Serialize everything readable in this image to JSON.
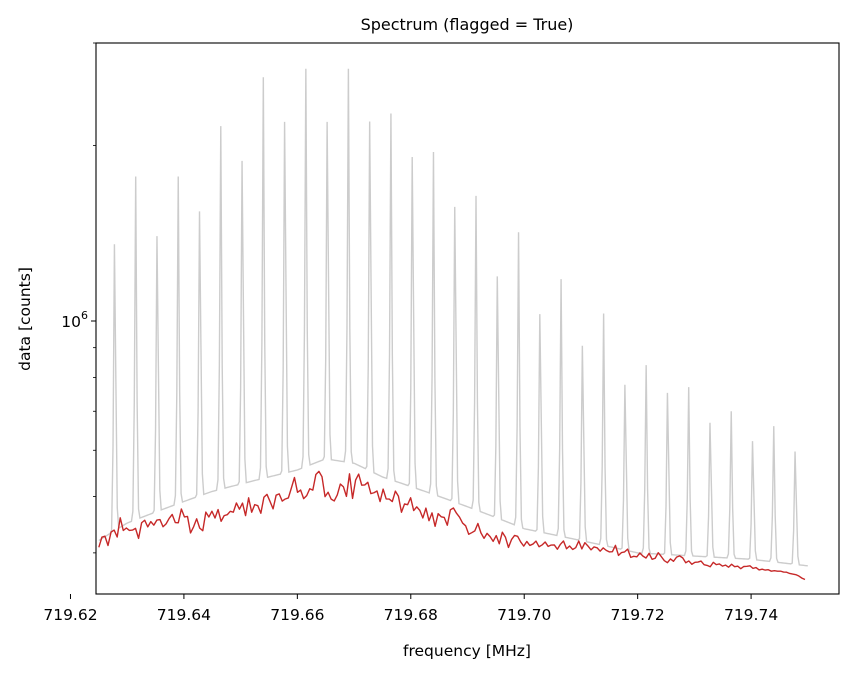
{
  "chart_data": {
    "type": "line",
    "title": "Spectrum (flagged = True)",
    "xlabel": "frequency [MHz]",
    "ylabel": "data [counts]",
    "y_scale": "log",
    "xlim": [
      719.6245,
      719.7555
    ],
    "ylim": [
      340000,
      3000000
    ],
    "x_ticks": [
      "719.62",
      "719.64",
      "719.66",
      "719.68",
      "719.70",
      "719.72",
      "719.74"
    ],
    "x_tick_values": [
      719.62,
      719.64,
      719.66,
      719.68,
      719.7,
      719.72,
      719.74
    ],
    "y_major_tick": {
      "label": "10",
      "exponent": "6",
      "value": 1000000
    },
    "y_minor_ticks": [
      400000,
      500000,
      600000,
      700000,
      800000,
      900000,
      2000000,
      3000000
    ],
    "grid": false,
    "legend": "none",
    "series": [
      {
        "role": "all-channels-background",
        "color": "#cccccc",
        "baseline": [
          [
            719.625,
            420000
          ],
          [
            719.63,
            450000
          ],
          [
            719.635,
            470000
          ],
          [
            719.64,
            490000
          ],
          [
            719.645,
            510000
          ],
          [
            719.65,
            525000
          ],
          [
            719.655,
            540000
          ],
          [
            719.66,
            555000
          ],
          [
            719.665,
            580000
          ],
          [
            719.67,
            570000
          ],
          [
            719.675,
            540000
          ],
          [
            719.68,
            520000
          ],
          [
            719.685,
            500000
          ],
          [
            719.69,
            480000
          ],
          [
            719.695,
            460000
          ],
          [
            719.7,
            440000
          ],
          [
            719.71,
            420000
          ],
          [
            719.72,
            400000
          ],
          [
            719.73,
            395000
          ],
          [
            719.74,
            390000
          ],
          [
            719.75,
            380000
          ]
        ],
        "spikes": [
          [
            719.6278,
            1680000
          ],
          [
            719.6315,
            1770000
          ],
          [
            719.6353,
            1720000
          ],
          [
            719.639,
            1770000
          ],
          [
            719.6428,
            1910000
          ],
          [
            719.6465,
            2160000
          ],
          [
            719.6503,
            2400000
          ],
          [
            719.654,
            2620000
          ],
          [
            719.6578,
            2860000
          ],
          [
            719.6615,
            2710000
          ],
          [
            719.6653,
            2830000
          ],
          [
            719.669,
            2710000
          ],
          [
            719.6728,
            2860000
          ],
          [
            719.6765,
            2270000
          ],
          [
            719.6803,
            2450000
          ],
          [
            719.684,
            1950000
          ],
          [
            719.6878,
            1960000
          ],
          [
            719.6915,
            1640000
          ],
          [
            719.6953,
            1430000
          ],
          [
            719.699,
            1420000
          ],
          [
            719.7028,
            1210000
          ],
          [
            719.7065,
            1180000
          ],
          [
            719.7103,
            1050000
          ],
          [
            719.714,
            1030000
          ],
          [
            719.7178,
            880000
          ],
          [
            719.7215,
            840000
          ],
          [
            719.7253,
            850000
          ],
          [
            719.729,
            770000
          ],
          [
            719.7328,
            740000
          ],
          [
            719.7365,
            700000
          ],
          [
            719.7403,
            680000
          ],
          [
            719.744,
            660000
          ],
          [
            719.7478,
            650000
          ]
        ]
      },
      {
        "role": "flagged-channels",
        "color": "#c62828",
        "x_start": 719.625,
        "x_end": 719.7495,
        "values": [
          408963,
          425622,
          427189,
          411853,
          434209,
          437683,
          425839,
          459440,
          436993,
          441319,
          437006,
          437681,
          440640,
          423591,
          450564,
          455071,
          443282,
          452553,
          446309,
          455453,
          456264,
          443520,
          448574,
          458347,
          465575,
          450924,
          450584,
          475700,
          461066,
          461993,
          432787,
          443398,
          457651,
          441101,
          436616,
          469931,
          460981,
          471562,
          459154,
          474616,
          453138,
          463442,
          465103,
          471398,
          469758,
          487163,
          475359,
          487002,
          463466,
          497180,
          469648,
          484050,
          482051,
          467815,
          498306,
          504138,
          490154,
          476001,
          502434,
          505059,
          490802,
          494941,
          496913,
          517112,
          538815,
          508154,
          512734,
          495562,
          501493,
          515346,
          512536,
          545300,
          551910,
          540512,
          499548,
          508316,
          494707,
          491082,
          502891,
          525017,
          519512,
          500101,
          546592,
          496009,
          533380,
          546120,
          522689,
          523208,
          528659,
          505509,
          507302,
          510713,
          489891,
          514564,
          495059,
          494829,
          490005,
          510512,
          500546,
          469651,
          485271,
          483838,
          497346,
          472837,
          479736,
          473151,
          459151,
          477342,
          454218,
          468553,
          444208,
          467102,
          461356,
          460040,
          446224,
          474213,
          477640,
          467823,
          460624,
          450002,
          445154,
          430484,
          433209,
          436311,
          449239,
          432926,
          423683,
          432066,
          426566,
          418633,
          428303,
          414599,
          434052,
          425716,
          408648,
          421575,
          428562,
          427008,
          417701,
          410818,
          418419,
          411914,
          414155,
          419099,
          409837,
          412736,
          417658,
          410339,
          412616,
          412736,
          405812,
          413779,
          419211,
          406521,
          411050,
          405426,
          408302,
          419235,
          406315,
          416426,
          411040,
          404853,
          409567,
          408151,
          402689,
          407919,
          403997,
          401522,
          401856,
          412010,
          395994,
          400582,
          401526,
          406006,
          392937,
          394599,
          393773,
          399812,
          394926,
          391981,
          399221,
          389902,
          391592,
          400271,
          394134,
          387807,
          384798,
          390581,
          386958,
          393339,
          395315,
          392183,
          384698,
          387452,
          382393,
          385339,
          385771,
          387312,
          381710,
          380698,
          378622,
          385290,
          381848,
          382939,
          379611,
          381119,
          377962,
          382394,
          378700,
          379591,
          375807,
          379048,
          379264,
          380000,
          376225,
          377398,
          373896,
          374996,
          373669,
          374212,
          372093,
          372830,
          372085,
          372140,
          370826,
          370541,
          368706,
          367808,
          367000,
          365000,
          362000,
          360000
        ]
      }
    ]
  }
}
